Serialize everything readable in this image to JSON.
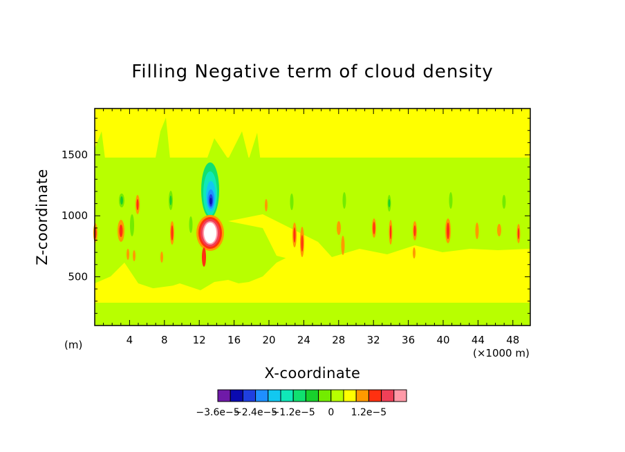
{
  "chart_data": {
    "type": "heatmap",
    "title": "Filling Negative term of cloud density",
    "xlabel": "X-coordinate",
    "ylabel": "Z-coordinate",
    "x_units_left": "(m)",
    "x_units_right": "(×1000 m)",
    "x_ticks": [
      "4",
      "8",
      "12",
      "16",
      "20",
      "24",
      "28",
      "32",
      "36",
      "40",
      "44",
      "48"
    ],
    "y_ticks": [
      "500",
      "1000",
      "1500"
    ],
    "xlim": [
      0,
      50
    ],
    "ylim": [
      100,
      1880
    ],
    "colorbar": {
      "colors": [
        "#6f1aa8",
        "#0a0ab0",
        "#1f3fe0",
        "#1f8fff",
        "#12c8f0",
        "#10e8b8",
        "#10e070",
        "#18d02c",
        "#73ec00",
        "#b8ff00",
        "#ffff00",
        "#ff9a00",
        "#ff3010",
        "#ef4058",
        "#ff9aa8"
      ],
      "labels": [
        "−3.6e−5",
        "−2.4e−5",
        "−1.2e−5",
        "0",
        "1.2e−5"
      ]
    },
    "features": [
      {
        "x": 13.3,
        "z": 1150,
        "value": "-3.6e-5",
        "type": "negative core"
      },
      {
        "x": 13.3,
        "z": 860,
        "value": "> 1.2e-5",
        "type": "positive core"
      }
    ]
  }
}
